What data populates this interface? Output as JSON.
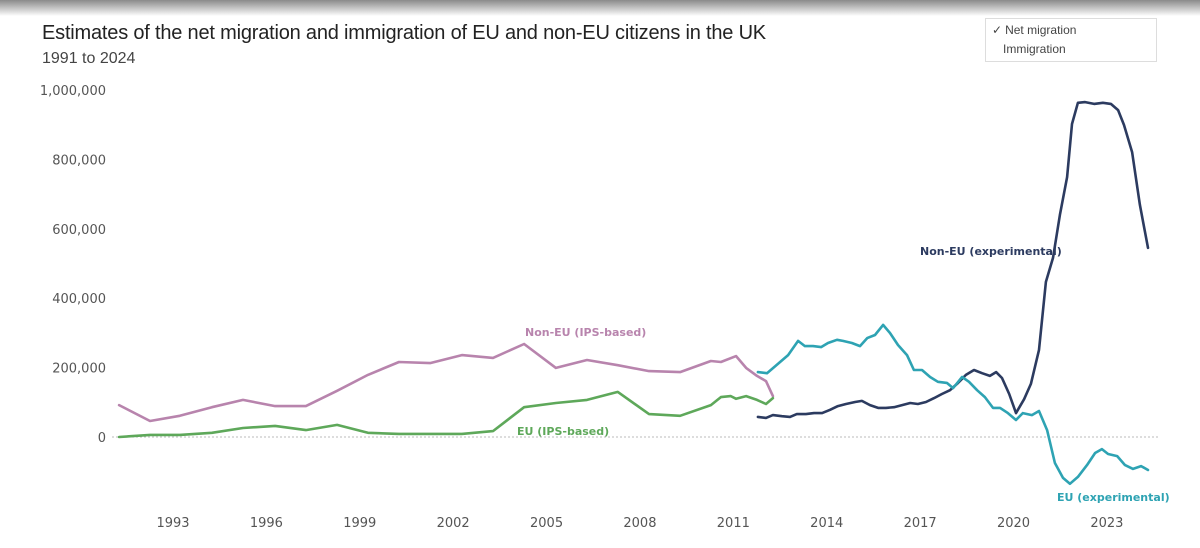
{
  "header": {
    "title": "Estimates of the net migration and immigration of EU and non-EU citizens in the UK",
    "subtitle": "1991 to 2024"
  },
  "measure_selector": {
    "options": [
      {
        "label": "Net migration",
        "selected": true,
        "check": "✓"
      },
      {
        "label": "Immigration",
        "selected": false
      }
    ]
  },
  "chart_data": {
    "type": "line",
    "title": "Estimates of the net migration and immigration of EU and non-EU citizens in the UK",
    "subtitle": "1991 to 2024",
    "xlabel": "",
    "ylabel": "",
    "xlim": [
      1991,
      2024.6
    ],
    "ylim": [
      -150000,
      1000000
    ],
    "x_ticks": [
      "1993",
      "1996",
      "1999",
      "2002",
      "2005",
      "2008",
      "2011",
      "2014",
      "2017",
      "2020",
      "2023"
    ],
    "y_ticks": [
      "1,000,000",
      "800,000",
      "600,000",
      "400,000",
      "200,000",
      "0"
    ],
    "y_tick_values": [
      1000000,
      800000,
      600000,
      400000,
      200000,
      0
    ],
    "zero_line": "dotted",
    "grid": false,
    "legend": "direct labels",
    "series": [
      {
        "name": "Non-EU (IPS-based)",
        "color": "#b884ad",
        "points": [
          [
            1991.27,
            92000
          ],
          [
            1992.26,
            46000
          ],
          [
            1993.22,
            61000
          ],
          [
            1994.25,
            86000
          ],
          [
            1995.25,
            107000
          ],
          [
            1996.28,
            89000
          ],
          [
            1997.27,
            89000
          ],
          [
            1998.27,
            133000
          ],
          [
            1999.26,
            179000
          ],
          [
            2000.26,
            216000
          ],
          [
            2001.26,
            213000
          ],
          [
            2002.28,
            236000
          ],
          [
            2003.28,
            228000
          ],
          [
            2004.28,
            268000
          ],
          [
            2005.3,
            199000
          ],
          [
            2006.3,
            222000
          ],
          [
            2007.29,
            207000
          ],
          [
            2008.29,
            190000
          ],
          [
            2009.29,
            187000
          ],
          [
            2010.28,
            219000
          ],
          [
            2010.6,
            216000
          ],
          [
            2011.09,
            233000
          ],
          [
            2011.41,
            199000
          ],
          [
            2011.76,
            176000
          ],
          [
            2012.05,
            161000
          ],
          [
            2012.27,
            118000
          ]
        ]
      },
      {
        "name": "EU (IPS-based)",
        "color": "#5ea85a",
        "points": [
          [
            1991.27,
            0
          ],
          [
            1992.26,
            6000
          ],
          [
            1993.22,
            6000
          ],
          [
            1994.25,
            12000
          ],
          [
            1995.25,
            26000
          ],
          [
            1996.28,
            32000
          ],
          [
            1997.27,
            20000
          ],
          [
            1998.27,
            35000
          ],
          [
            1999.26,
            12000
          ],
          [
            2000.26,
            9000
          ],
          [
            2001.26,
            9000
          ],
          [
            2002.28,
            9000
          ],
          [
            2003.28,
            17000
          ],
          [
            2004.28,
            86000
          ],
          [
            2005.3,
            98000
          ],
          [
            2006.3,
            107000
          ],
          [
            2007.29,
            130000
          ],
          [
            2008.29,
            66000
          ],
          [
            2009.29,
            61000
          ],
          [
            2010.28,
            92000
          ],
          [
            2010.6,
            115000
          ],
          [
            2010.92,
            118000
          ],
          [
            2011.09,
            110000
          ],
          [
            2011.41,
            118000
          ],
          [
            2011.76,
            107000
          ],
          [
            2012.05,
            95000
          ],
          [
            2012.27,
            112000
          ]
        ]
      },
      {
        "name": "Non-EU (experimental)",
        "color": "#2c3b60",
        "points": [
          [
            2011.79,
            58000
          ],
          [
            2012.05,
            55000
          ],
          [
            2012.27,
            63000
          ],
          [
            2012.56,
            60000
          ],
          [
            2012.82,
            58000
          ],
          [
            2013.04,
            66000
          ],
          [
            2013.33,
            66000
          ],
          [
            2013.59,
            69000
          ],
          [
            2013.85,
            69000
          ],
          [
            2014.1,
            78000
          ],
          [
            2014.36,
            89000
          ],
          [
            2014.62,
            95000
          ],
          [
            2014.91,
            101000
          ],
          [
            2015.13,
            104000
          ],
          [
            2015.39,
            92000
          ],
          [
            2015.65,
            84000
          ],
          [
            2015.9,
            84000
          ],
          [
            2016.16,
            86000
          ],
          [
            2016.42,
            92000
          ],
          [
            2016.68,
            98000
          ],
          [
            2016.93,
            95000
          ],
          [
            2017.19,
            101000
          ],
          [
            2017.45,
            112000
          ],
          [
            2017.7,
            124000
          ],
          [
            2017.96,
            135000
          ],
          [
            2018.22,
            156000
          ],
          [
            2018.47,
            179000
          ],
          [
            2018.73,
            193000
          ],
          [
            2018.99,
            184000
          ],
          [
            2019.24,
            176000
          ],
          [
            2019.44,
            187000
          ],
          [
            2019.63,
            170000
          ],
          [
            2019.86,
            124000
          ],
          [
            2020.08,
            69000
          ],
          [
            2020.34,
            109000
          ],
          [
            2020.56,
            153000
          ],
          [
            2020.82,
            251000
          ],
          [
            2021.04,
            447000
          ],
          [
            2021.27,
            516000
          ],
          [
            2021.49,
            640000
          ],
          [
            2021.72,
            749000
          ],
          [
            2021.88,
            902000
          ],
          [
            2022.07,
            963000
          ],
          [
            2022.3,
            965000
          ],
          [
            2022.59,
            960000
          ],
          [
            2022.87,
            963000
          ],
          [
            2023.13,
            960000
          ],
          [
            2023.36,
            942000
          ],
          [
            2023.55,
            899000
          ],
          [
            2023.81,
            821000
          ],
          [
            2024.06,
            669000
          ],
          [
            2024.32,
            545000
          ]
        ]
      },
      {
        "name": "EU (experimental)",
        "color": "#2ea3b3",
        "points": [
          [
            2011.79,
            187000
          ],
          [
            2012.08,
            184000
          ],
          [
            2012.4,
            208000
          ],
          [
            2012.76,
            236000
          ],
          [
            2013.08,
            277000
          ],
          [
            2013.3,
            262000
          ],
          [
            2013.56,
            262000
          ],
          [
            2013.82,
            259000
          ],
          [
            2014.04,
            271000
          ],
          [
            2014.33,
            280000
          ],
          [
            2014.52,
            277000
          ],
          [
            2014.81,
            271000
          ],
          [
            2015.07,
            262000
          ],
          [
            2015.3,
            285000
          ],
          [
            2015.55,
            294000
          ],
          [
            2015.81,
            323000
          ],
          [
            2016.03,
            300000
          ],
          [
            2016.29,
            265000
          ],
          [
            2016.58,
            236000
          ],
          [
            2016.8,
            193000
          ],
          [
            2017.06,
            193000
          ],
          [
            2017.32,
            173000
          ],
          [
            2017.57,
            159000
          ],
          [
            2017.86,
            156000
          ],
          [
            2018.06,
            141000
          ],
          [
            2018.35,
            173000
          ],
          [
            2018.57,
            159000
          ],
          [
            2018.83,
            135000
          ],
          [
            2019.08,
            115000
          ],
          [
            2019.34,
            84000
          ],
          [
            2019.57,
            84000
          ],
          [
            2019.82,
            69000
          ],
          [
            2020.08,
            49000
          ],
          [
            2020.3,
            69000
          ],
          [
            2020.59,
            63000
          ],
          [
            2020.82,
            75000
          ],
          [
            2021.08,
            20000
          ],
          [
            2021.33,
            -75000
          ],
          [
            2021.59,
            -118000
          ],
          [
            2021.81,
            -135000
          ],
          [
            2022.07,
            -115000
          ],
          [
            2022.36,
            -81000
          ],
          [
            2022.62,
            -46000
          ],
          [
            2022.84,
            -35000
          ],
          [
            2023.04,
            -49000
          ],
          [
            2023.33,
            -55000
          ],
          [
            2023.58,
            -81000
          ],
          [
            2023.84,
            -92000
          ],
          [
            2024.1,
            -84000
          ],
          [
            2024.32,
            -95000
          ]
        ]
      }
    ]
  }
}
